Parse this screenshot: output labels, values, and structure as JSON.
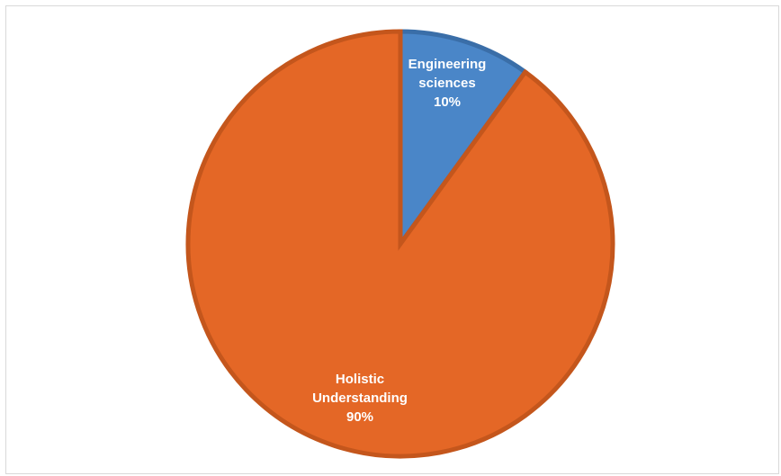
{
  "chart_data": {
    "type": "pie",
    "title": "",
    "start_angle_deg": 0,
    "direction": "clockwise",
    "slices": [
      {
        "label_lines": [
          "Engineering",
          "sciences",
          "10%"
        ],
        "category": "Engineering sciences",
        "value": 10,
        "percent_label": "10%",
        "color": "#4a86c8",
        "border_color": "#3a6ea8"
      },
      {
        "label_lines": [
          "Holistic",
          "Understanding",
          "90%"
        ],
        "category": "Holistic Understanding",
        "value": 90,
        "percent_label": "90%",
        "color": "#e46726",
        "border_color": "#c4561c"
      }
    ],
    "legend": "none",
    "data_labels": "inside"
  }
}
